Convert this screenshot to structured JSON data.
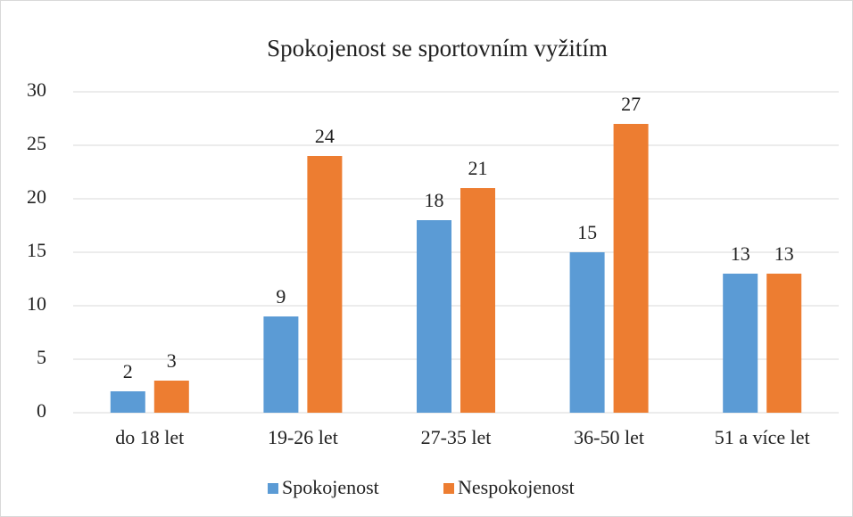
{
  "chart_data": {
    "type": "bar",
    "title": "Spokojenost se sportovním vyžitím",
    "categories": [
      "do 18 let",
      "19-26 let",
      "27-35 let",
      "36-50 let",
      "51 a více let"
    ],
    "series": [
      {
        "name": "Spokojenost",
        "color": "#5b9bd5",
        "values": [
          2,
          9,
          18,
          15,
          13
        ]
      },
      {
        "name": "Nespokojenost",
        "color": "#ed7d31",
        "values": [
          3,
          24,
          21,
          27,
          13
        ]
      }
    ],
    "ylim": [
      0,
      30
    ],
    "yticks": [
      0,
      5,
      10,
      15,
      20,
      25,
      30
    ],
    "grid": true,
    "legend": "bottom"
  }
}
